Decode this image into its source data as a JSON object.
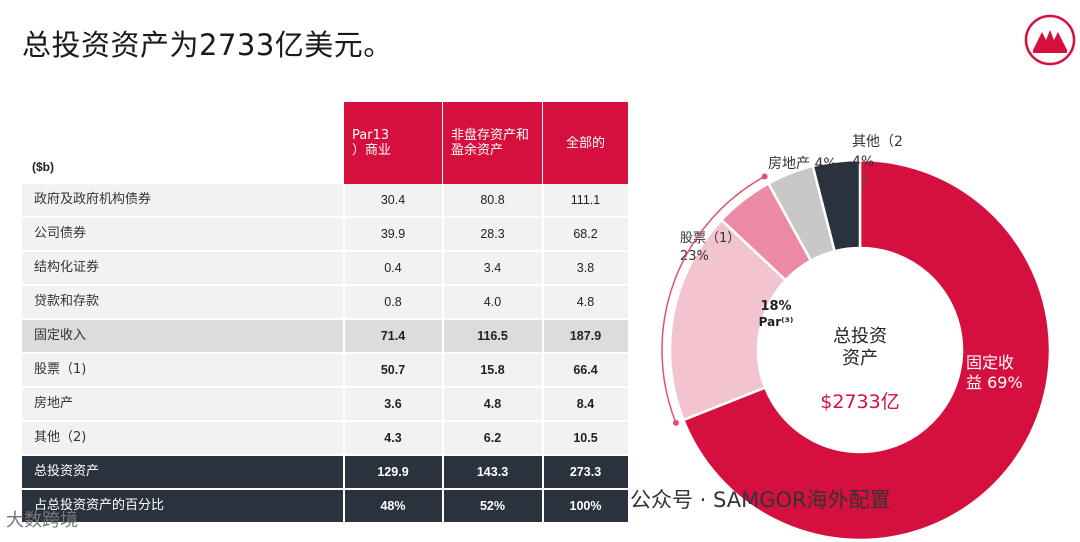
{
  "title": "总投资资产为2733亿美元。",
  "watermark": "公众号 · SAMGOR海外配置",
  "watermark2": "大数跨境",
  "table": {
    "unit_label": "($b)",
    "columns": [
      "Par13\n）商业",
      "非盘存资产和盈余资产",
      "全部的"
    ],
    "rows": [
      {
        "label": "政府及政府机构债券",
        "values": [
          "30.4",
          "80.8",
          "111.1"
        ],
        "style": "light"
      },
      {
        "label": "公司债券",
        "values": [
          "39.9",
          "28.3",
          "68.2"
        ],
        "style": "light"
      },
      {
        "label": "结构化证券",
        "values": [
          "0.4",
          "3.4",
          "3.8"
        ],
        "style": "light"
      },
      {
        "label": "贷款和存款",
        "values": [
          "0.8",
          "4.0",
          "4.8"
        ],
        "style": "light"
      },
      {
        "label": "固定收入",
        "values": [
          "71.4",
          "116.5",
          "187.9"
        ],
        "style": "mid"
      },
      {
        "label": "股票（1)",
        "values": [
          "50.7",
          "15.8",
          "66.4"
        ],
        "style": "light-bold"
      },
      {
        "label": "房地产",
        "values": [
          "3.6",
          "4.8",
          "8.4"
        ],
        "style": "light-bold"
      },
      {
        "label": "其他（2)",
        "values": [
          "4.3",
          "6.2",
          "10.5"
        ],
        "style": "light-bold"
      },
      {
        "label": "总投资资产",
        "values": [
          "129.9",
          "143.3",
          "273.3"
        ],
        "style": "dark"
      },
      {
        "label": "占总投资资产的百分比",
        "values": [
          "48%",
          "52%",
          "100%"
        ],
        "style": "dark"
      }
    ]
  },
  "chart_data": {
    "type": "pie",
    "title": "",
    "center_label": "总投资资产",
    "center_value": "$2733亿",
    "slices": [
      {
        "label": "固定收益 69%",
        "value": 69,
        "color": "#d5103f"
      },
      {
        "label": "股票（1）23%",
        "value": 18,
        "color": "#f2c4d0",
        "inner_label": "18%",
        "inner_sub": "Par⁽³⁾"
      },
      {
        "label": "",
        "value": 5,
        "color": "#ec8aa6"
      },
      {
        "label": "房地产 4%",
        "value": 4,
        "color": "#c8c8c8"
      },
      {
        "label": "其他（2 4%",
        "value": 4,
        "color": "#2a333d"
      }
    ],
    "bracket_label": "股票（1）\n23%"
  }
}
